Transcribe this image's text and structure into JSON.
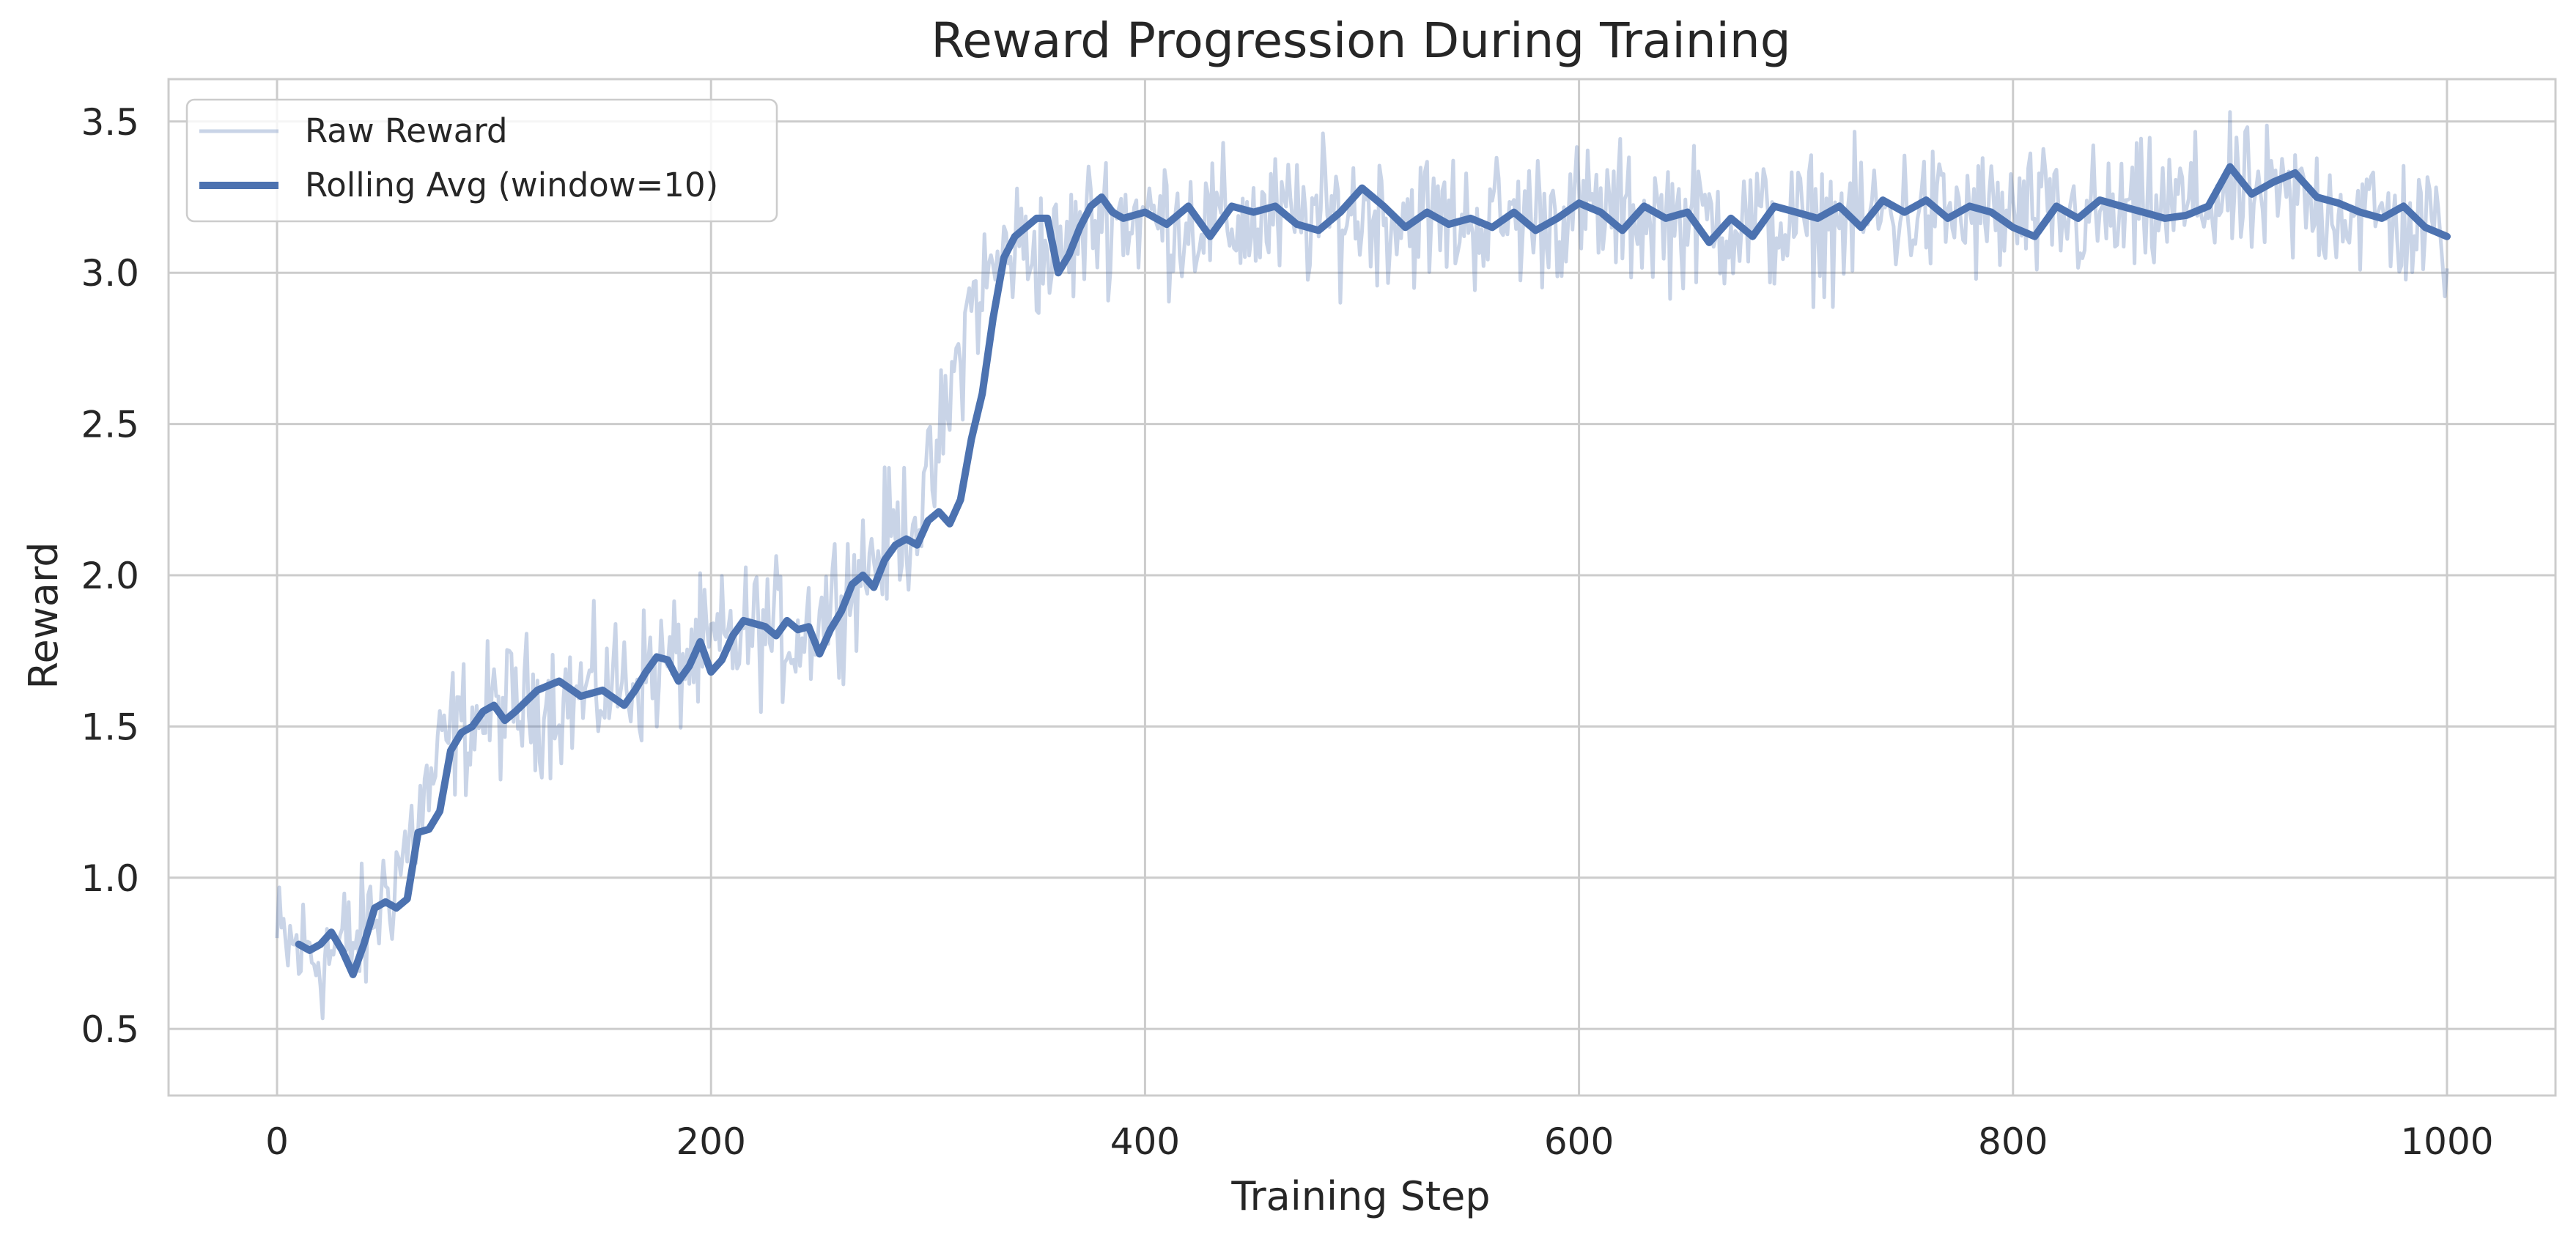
{
  "chart_data": {
    "type": "line",
    "title": "Reward Progression During Training",
    "xlabel": "Training Step",
    "ylabel": "Reward",
    "xlim": [
      -50,
      1050
    ],
    "ylim": [
      0.28,
      3.64
    ],
    "xticks": [
      0,
      200,
      400,
      600,
      800,
      1000
    ],
    "xtick_labels": [
      "0",
      "200",
      "400",
      "600",
      "800",
      "1000"
    ],
    "yticks": [
      0.5,
      1.0,
      1.5,
      2.0,
      2.5,
      3.0,
      3.5
    ],
    "ytick_labels": [
      "0.5",
      "1.0",
      "1.5",
      "2.0",
      "2.5",
      "3.0",
      "3.5"
    ],
    "grid": true,
    "legend_position": "upper-left",
    "series": [
      {
        "name": "Raw Reward",
        "color": "#4c72b0",
        "opacity": 0.3,
        "noise_amplitude": 0.14,
        "x": [
          0,
          20,
          40,
          60,
          80,
          100,
          120,
          140,
          160,
          180,
          200,
          220,
          240,
          260,
          280,
          300,
          320,
          340,
          360,
          380,
          400,
          450,
          500,
          550,
          600,
          650,
          700,
          750,
          800,
          850,
          900,
          950,
          1000
        ],
        "y": [
          0.78,
          0.74,
          0.8,
          1.1,
          1.48,
          1.55,
          1.58,
          1.6,
          1.65,
          1.7,
          1.75,
          1.82,
          1.8,
          1.95,
          2.1,
          2.25,
          2.9,
          3.1,
          3.05,
          3.2,
          3.18,
          3.16,
          3.2,
          3.17,
          3.2,
          3.18,
          3.15,
          3.2,
          3.18,
          3.18,
          3.25,
          3.22,
          3.12
        ]
      },
      {
        "name": "Rolling Avg (window=10)",
        "color": "#4c72b0",
        "x": [
          10,
          15,
          20,
          25,
          30,
          35,
          40,
          45,
          50,
          55,
          60,
          65,
          70,
          75,
          80,
          85,
          90,
          95,
          100,
          105,
          110,
          120,
          130,
          140,
          150,
          160,
          165,
          170,
          175,
          180,
          185,
          190,
          195,
          200,
          205,
          210,
          215,
          220,
          225,
          230,
          235,
          240,
          245,
          250,
          255,
          260,
          265,
          270,
          275,
          280,
          285,
          290,
          295,
          300,
          305,
          310,
          315,
          320,
          325,
          330,
          335,
          340,
          345,
          350,
          355,
          360,
          365,
          370,
          375,
          380,
          385,
          390,
          400,
          410,
          420,
          430,
          440,
          450,
          460,
          470,
          480,
          490,
          500,
          510,
          520,
          530,
          540,
          550,
          560,
          570,
          580,
          590,
          600,
          610,
          620,
          630,
          640,
          650,
          660,
          670,
          680,
          690,
          700,
          710,
          720,
          730,
          740,
          750,
          760,
          770,
          780,
          790,
          800,
          810,
          820,
          830,
          840,
          850,
          860,
          870,
          880,
          890,
          900,
          910,
          920,
          930,
          940,
          950,
          960,
          970,
          980,
          990,
          1000
        ],
        "y": [
          0.78,
          0.76,
          0.78,
          0.82,
          0.76,
          0.68,
          0.78,
          0.9,
          0.92,
          0.9,
          0.93,
          1.15,
          1.16,
          1.22,
          1.42,
          1.48,
          1.5,
          1.55,
          1.57,
          1.52,
          1.55,
          1.62,
          1.65,
          1.6,
          1.62,
          1.57,
          1.62,
          1.68,
          1.73,
          1.72,
          1.65,
          1.7,
          1.78,
          1.68,
          1.72,
          1.8,
          1.85,
          1.84,
          1.83,
          1.8,
          1.85,
          1.82,
          1.83,
          1.74,
          1.82,
          1.88,
          1.97,
          2.0,
          1.96,
          2.05,
          2.1,
          2.12,
          2.1,
          2.18,
          2.21,
          2.17,
          2.25,
          2.45,
          2.6,
          2.85,
          3.05,
          3.12,
          3.15,
          3.18,
          3.18,
          3.0,
          3.06,
          3.15,
          3.22,
          3.25,
          3.2,
          3.18,
          3.2,
          3.16,
          3.22,
          3.12,
          3.22,
          3.2,
          3.22,
          3.16,
          3.14,
          3.2,
          3.28,
          3.22,
          3.15,
          3.2,
          3.16,
          3.18,
          3.15,
          3.2,
          3.14,
          3.18,
          3.23,
          3.2,
          3.14,
          3.22,
          3.18,
          3.2,
          3.1,
          3.18,
          3.12,
          3.22,
          3.2,
          3.18,
          3.22,
          3.15,
          3.24,
          3.2,
          3.24,
          3.18,
          3.22,
          3.2,
          3.15,
          3.12,
          3.22,
          3.18,
          3.24,
          3.22,
          3.2,
          3.18,
          3.19,
          3.22,
          3.35,
          3.26,
          3.3,
          3.33,
          3.25,
          3.23,
          3.2,
          3.18,
          3.22,
          3.15,
          3.12
        ]
      }
    ]
  },
  "colors": {
    "axes_edge": "#cccccc",
    "grid": "#cccccc",
    "text": "#262626",
    "legend_edge": "#cccccc"
  }
}
